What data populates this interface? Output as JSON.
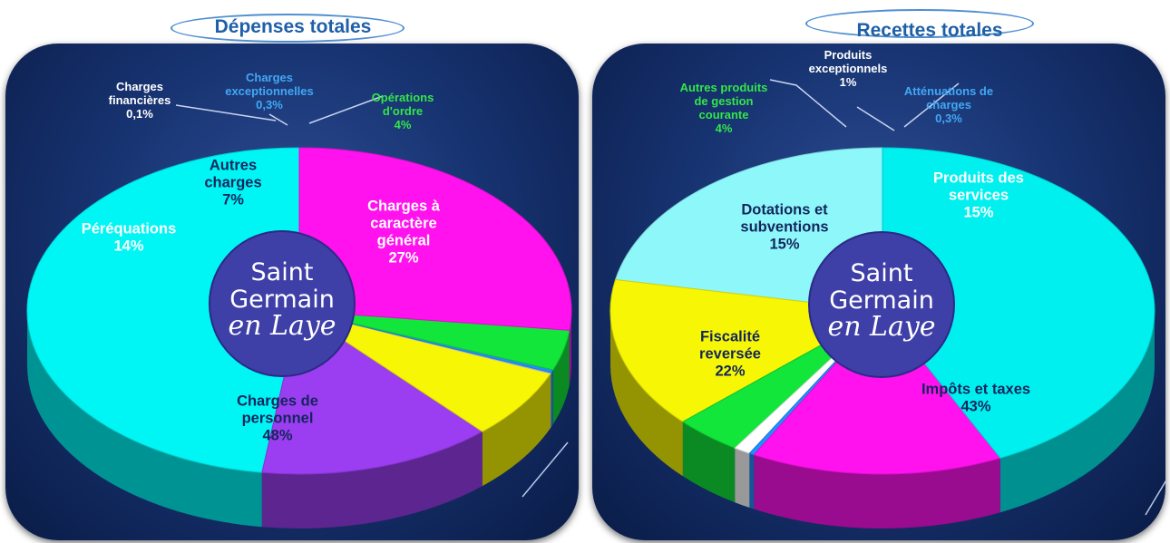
{
  "logo": {
    "line1": "Saint",
    "line2": "Germain",
    "line3": "en Laye"
  },
  "chart_data": [
    {
      "type": "pie",
      "title": "Dépenses totales",
      "slices": [
        {
          "label": [
            "Charges de",
            "personnel"
          ],
          "value_label": "48%",
          "value": 48,
          "color": "#00f5f5",
          "text_color": "#13265c",
          "size": "big"
        },
        {
          "label": [
            "Péréquations"
          ],
          "value_label": "14%",
          "value": 14,
          "color": "#9b3df0",
          "text_color": "#ffffff",
          "size": "big"
        },
        {
          "label": [
            "Autres",
            "charges"
          ],
          "value_label": "7%",
          "value": 7,
          "color": "#f7f705",
          "text_color": "#13265c",
          "size": "big"
        },
        {
          "label": [
            "Charges",
            "financières"
          ],
          "value_label": "0,1%",
          "value": 0.1,
          "color": "#d8d8d8",
          "text_color": "#ffffff",
          "size": "small"
        },
        {
          "label": [
            "Charges",
            "exceptionnelles"
          ],
          "value_label": "0,3%",
          "value": 0.3,
          "color": "#1e90ff",
          "text_color": "#41a8f5",
          "size": "small"
        },
        {
          "label": [
            "Opérations",
            "d'ordre"
          ],
          "value_label": "4%",
          "value": 4,
          "color": "#12e63a",
          "text_color": "#33e64a",
          "size": "small"
        },
        {
          "label": [
            "Charges à",
            "caractère",
            "général"
          ],
          "value_label": "27%",
          "value": 27,
          "color": "#ff12ee",
          "text_color": "#ffffff",
          "size": "big"
        }
      ]
    },
    {
      "type": "pie",
      "title": "Recettes totales",
      "slices": [
        {
          "label": [
            "Fiscalité",
            "reversée"
          ],
          "value_label": "22%",
          "value": 22,
          "color": "#8ef7fa",
          "text_color": "#13265c",
          "size": "big"
        },
        {
          "label": [
            "Dotations et",
            "subventions"
          ],
          "value_label": "15%",
          "value": 15,
          "color": "#f7f705",
          "text_color": "#13265c",
          "size": "big"
        },
        {
          "label": [
            "Autres produits",
            "de gestion",
            "courante"
          ],
          "value_label": "4%",
          "value": 4,
          "color": "#12e63a",
          "text_color": "#33e64a",
          "size": "small"
        },
        {
          "label": [
            "Produits",
            "exceptionnels"
          ],
          "value_label": "1%",
          "value": 1,
          "color": "#ffffff",
          "text_color": "#ffffff",
          "size": "small"
        },
        {
          "label": [
            "Atténuations de",
            "charges"
          ],
          "value_label": "0,3%",
          "value": 0.3,
          "color": "#1e90ff",
          "text_color": "#41a8f5",
          "size": "small"
        },
        {
          "label": [
            "Produits des",
            "services"
          ],
          "value_label": "15%",
          "value": 15,
          "color": "#ff12ee",
          "text_color": "#ffffff",
          "size": "big"
        },
        {
          "label": [
            "Impôts et taxes"
          ],
          "value_label": "43%",
          "value": 43,
          "color": "#00f0f0",
          "text_color": "#13265c",
          "size": "big"
        }
      ]
    }
  ]
}
